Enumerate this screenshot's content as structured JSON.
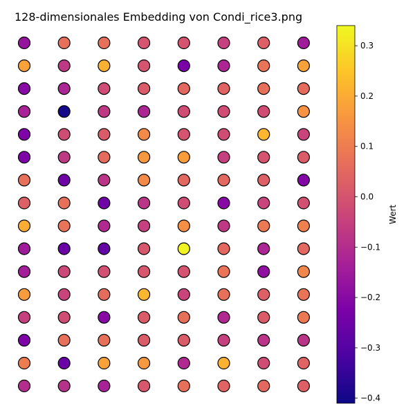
{
  "chart_data": {
    "type": "scatter",
    "title": "128-dimensionales Embedding von Condi_rice3.png",
    "grid": false,
    "axes_visible": false,
    "rows": 16,
    "cols": 8,
    "colormap": "plasma",
    "colorbar": {
      "label": "Wert",
      "placement": "right",
      "vmin": -0.41,
      "vmax": 0.34,
      "ticks": [
        {
          "value": 0.3,
          "label": "0.3"
        },
        {
          "value": 0.2,
          "label": "0.2"
        },
        {
          "value": 0.1,
          "label": "0.1"
        },
        {
          "value": 0.0,
          "label": "0.0"
        },
        {
          "value": -0.1,
          "label": "−0.1"
        },
        {
          "value": -0.2,
          "label": "−0.2"
        },
        {
          "value": -0.3,
          "label": "−0.3"
        },
        {
          "value": -0.4,
          "label": "−0.4"
        }
      ]
    },
    "values": [
      [
        -0.17,
        0.07,
        0.07,
        0.0,
        0.0,
        -0.05,
        0.03,
        -0.15
      ],
      [
        0.18,
        -0.07,
        0.21,
        0.0,
        -0.23,
        -0.12,
        0.08,
        0.18
      ],
      [
        -0.2,
        -0.12,
        -0.02,
        0.02,
        0.05,
        0.04,
        0.07,
        0.06
      ],
      [
        -0.13,
        -0.4,
        -0.07,
        -0.12,
        -0.02,
        -0.02,
        -0.02,
        0.15
      ],
      [
        -0.22,
        -0.02,
        0.02,
        0.13,
        0.0,
        -0.02,
        0.22,
        -0.04
      ],
      [
        -0.22,
        -0.07,
        0.06,
        0.16,
        0.17,
        -0.05,
        0.0,
        0.02
      ],
      [
        0.07,
        -0.25,
        -0.08,
        0.13,
        0.05,
        0.05,
        0.03,
        -0.21
      ],
      [
        0.03,
        0.07,
        -0.25,
        -0.08,
        -0.02,
        -0.2,
        -0.04,
        -0.01
      ],
      [
        0.2,
        0.08,
        -0.11,
        -0.05,
        0.14,
        -0.07,
        0.09,
        0.11
      ],
      [
        -0.15,
        -0.26,
        -0.27,
        0.01,
        0.33,
        0.05,
        -0.12,
        0.05
      ],
      [
        -0.14,
        -0.03,
        -0.01,
        0.01,
        0.0,
        0.08,
        -0.18,
        0.12
      ],
      [
        0.17,
        -0.04,
        0.06,
        0.22,
        -0.04,
        0.07,
        0.03,
        0.08
      ],
      [
        -0.05,
        -0.02,
        -0.2,
        0.02,
        0.07,
        -0.11,
        0.02,
        0.09
      ],
      [
        -0.22,
        0.07,
        0.07,
        0.02,
        0.02,
        -0.05,
        -0.08,
        -0.08
      ],
      [
        0.1,
        -0.26,
        0.18,
        0.16,
        -0.11,
        0.21,
        -0.02,
        0.04
      ],
      [
        -0.1,
        -0.09,
        -0.13,
        0.01,
        0.07,
        0.04,
        0.05,
        0.03
      ]
    ]
  }
}
